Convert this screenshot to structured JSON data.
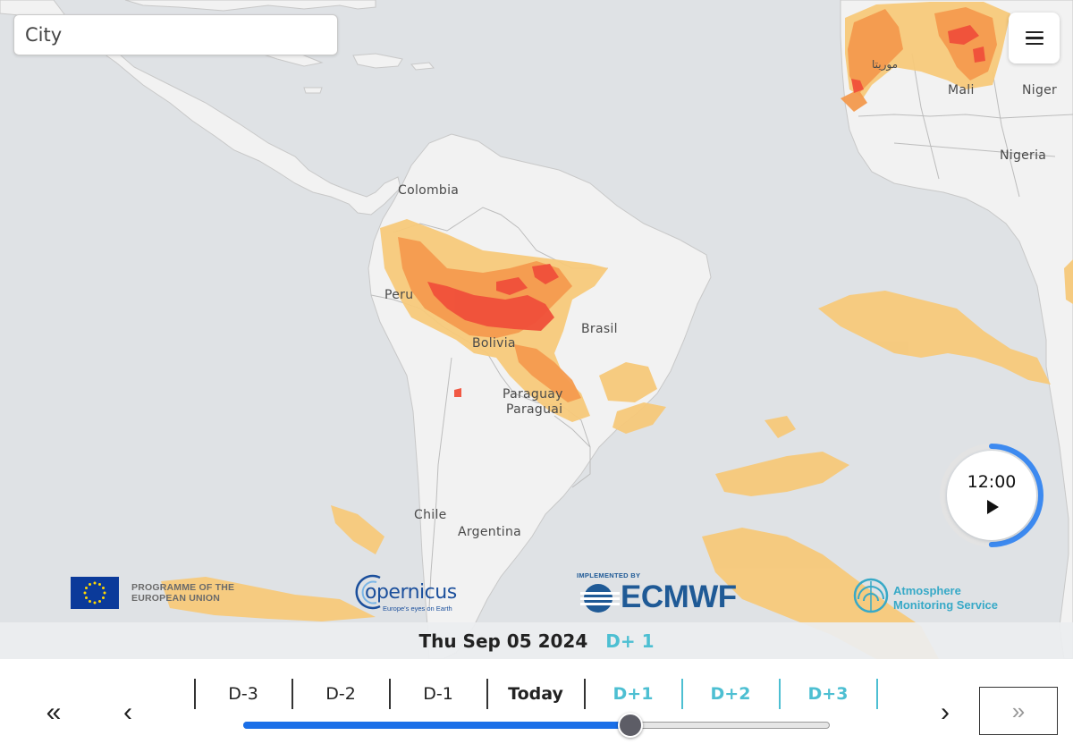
{
  "search": {
    "placeholder": "City",
    "icon": "none"
  },
  "menu": {
    "icon": "hamburger-menu-icon"
  },
  "map": {
    "labels": {
      "colombia": "Colombia",
      "peru": "Peru",
      "brasil": "Brasil",
      "bolivia": "Bolivia",
      "paraguay_1": "Paraguay",
      "paraguay_2": "Paraguai",
      "chile": "Chile",
      "argentina": "Argentina",
      "mali": "Mali",
      "niger": "Niger",
      "nigeria": "Nigeria",
      "morocco": "موريتا"
    },
    "colors": {
      "land": "#f2f2f2",
      "sea": "#dfe2e5",
      "level_low": "#f7c97a",
      "level_mid": "#f49a4e",
      "level_high": "#f0503a"
    }
  },
  "clock": {
    "time": "12:00",
    "play_icon": "play-icon",
    "progress": 0.5
  },
  "logos": {
    "eu_line1": "PROGRAMME OF THE",
    "eu_line2": "EUROPEAN UNION",
    "copernicus_name": "opernicus",
    "copernicus_tag": "Europe's eyes on Earth",
    "ecmwf_small": "IMPLEMENTED BY",
    "ecmwf_name": "ECMWF",
    "cams_line1": "Atmosphere",
    "cams_line2": "Monitoring Service"
  },
  "date_bar": {
    "date": "Thu Sep 05 2024",
    "offset": "D+ 1"
  },
  "timeline": {
    "first": "«",
    "prev": "‹",
    "next": "›",
    "last": "»",
    "days": [
      "D-3",
      "D-2",
      "D-1",
      "Today",
      "D+1",
      "D+2",
      "D+3"
    ],
    "slider_position": 0.66
  }
}
